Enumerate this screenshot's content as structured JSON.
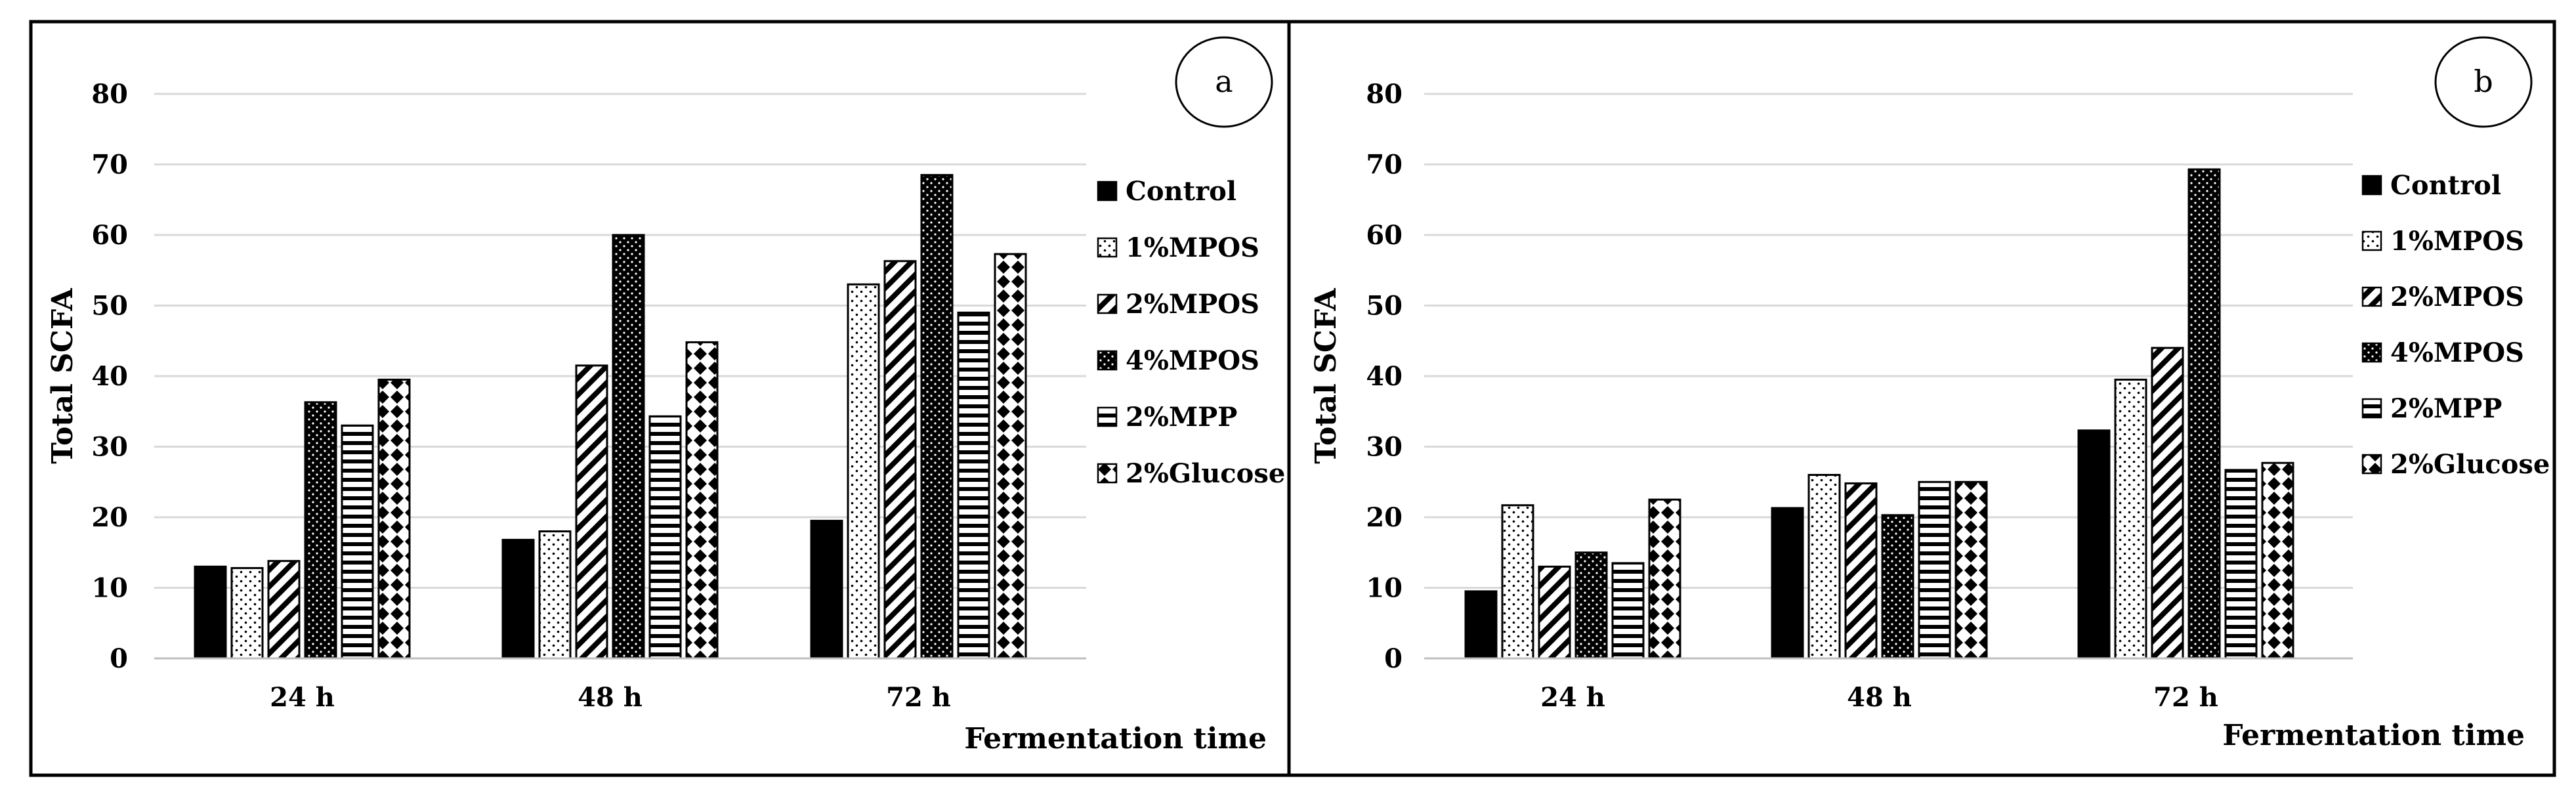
{
  "chart_data": [
    {
      "panel": "a",
      "type": "bar",
      "ylabel": "Total SCFA",
      "xlabel": "Fermentation time",
      "ylim": [
        0,
        80
      ],
      "yticks": [
        0,
        10,
        20,
        30,
        40,
        50,
        60,
        70,
        80
      ],
      "categories": [
        "24 h",
        "48 h",
        "72 h"
      ],
      "series": [
        {
          "name": "Control",
          "values": [
            13,
            16.8,
            19.5
          ]
        },
        {
          "name": "1%MPOS",
          "values": [
            12.8,
            18,
            53
          ]
        },
        {
          "name": "2%MPOS",
          "values": [
            13.8,
            41.5,
            56.3
          ]
        },
        {
          "name": "4%MPOS",
          "values": [
            36.3,
            60,
            68.5
          ]
        },
        {
          "name": "2%MPP",
          "values": [
            33,
            34.3,
            49
          ]
        },
        {
          "name": "2%Glucose",
          "values": [
            39.5,
            44.8,
            57.3
          ]
        }
      ]
    },
    {
      "panel": "b",
      "type": "bar",
      "ylabel": "Total SCFA",
      "xlabel": "Fermentation time",
      "ylim": [
        0,
        80
      ],
      "yticks": [
        0,
        10,
        20,
        30,
        40,
        50,
        60,
        70,
        80
      ],
      "categories": [
        "24 h",
        "48 h",
        "72 h"
      ],
      "series": [
        {
          "name": "Control",
          "values": [
            9.5,
            21.3,
            32.3
          ]
        },
        {
          "name": "1%MPOS",
          "values": [
            21.7,
            26,
            39.5
          ]
        },
        {
          "name": "2%MPOS",
          "values": [
            13,
            24.8,
            44
          ]
        },
        {
          "name": "4%MPOS",
          "values": [
            15,
            20.3,
            69.3
          ]
        },
        {
          "name": "2%MPP",
          "values": [
            13.5,
            25,
            26.7
          ]
        },
        {
          "name": "2%Glucose",
          "values": [
            22.5,
            25,
            27.7
          ]
        }
      ]
    }
  ]
}
